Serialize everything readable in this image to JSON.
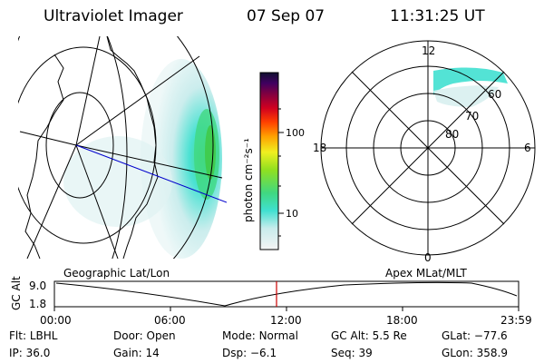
{
  "header": {
    "title": "Ultraviolet Imager",
    "date": "07 Sep 07",
    "time": "11:31:25 UT"
  },
  "colorbar": {
    "label": "photon cm⁻²s⁻¹",
    "ticks": [
      "100",
      "10"
    ],
    "scale": "log"
  },
  "left_map": {
    "caption": "Geographic Lat/Lon"
  },
  "polar_plot": {
    "caption": "Apex MLat/MLT",
    "mlt_labels": [
      "12",
      "18",
      "6",
      "0"
    ],
    "mlat_labels": [
      "60",
      "70",
      "80"
    ]
  },
  "altitude_plot": {
    "ylabel": "GC Alt",
    "yticks": [
      "9.0",
      "1.8"
    ],
    "xticks": [
      "00:00",
      "06:00",
      "12:00",
      "18:00",
      "23:59"
    ],
    "current_marker_time": "11:31"
  },
  "info": {
    "row1": [
      {
        "label": "Flt:",
        "value": "LBHL"
      },
      {
        "label": "Door:",
        "value": "Open"
      },
      {
        "label": "Mode:",
        "value": "Normal"
      },
      {
        "label": "GC Alt:",
        "value": "5.5 Re"
      },
      {
        "label": "GLat:",
        "value": "−77.6"
      }
    ],
    "row2": [
      {
        "label": "IP:",
        "value": "36.0"
      },
      {
        "label": "Gain:",
        "value": "14"
      },
      {
        "label": "Dsp:",
        "value": "−6.1"
      },
      {
        "label": "Seq:",
        "value": "39"
      },
      {
        "label": "GLon:",
        "value": "358.9"
      }
    ]
  },
  "colors": {
    "aurora_low": "#c8ecec",
    "aurora_mid": "#40e0d0",
    "aurora_high": "#40c840",
    "marker": "#cc0000",
    "track": "#0000cc"
  }
}
